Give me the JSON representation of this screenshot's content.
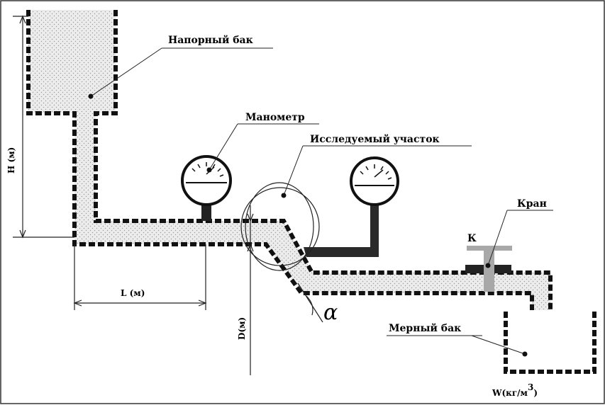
{
  "labels": {
    "pressure_tank": "Напорный бак",
    "manometer": "Манометр",
    "test_section": "Исследуемый участок",
    "valve": "Кран",
    "valve_letter": "К",
    "measuring_tank": "Мерный бак",
    "height": "H (м)",
    "length": "L (м)",
    "diameter": "D(м)",
    "angle": "α",
    "volume": "W(кг/м",
    "volume_sup": "3",
    "volume_close": ")"
  },
  "colors": {
    "wall": "#111111",
    "fill": "#e9e9e9",
    "dots": "#9a9a9a",
    "valve_stem": "#a8a8a8",
    "frame": "#333333"
  }
}
